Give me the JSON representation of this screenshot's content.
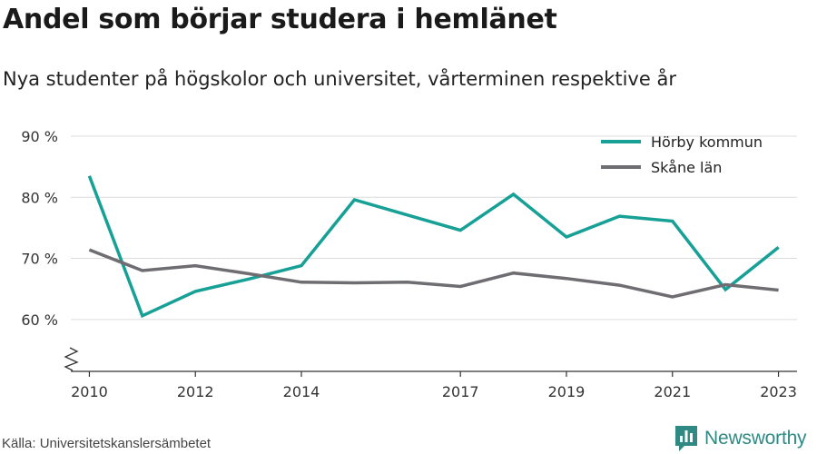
{
  "chart_data": {
    "type": "line",
    "title": "Andel som börjar studera i hemlänet",
    "subtitle": "Nya studenter på högskolor och universitet, vårterminen respektive år",
    "x": [
      2010,
      2011,
      2012,
      2013,
      2014,
      2015,
      2016,
      2017,
      2018,
      2019,
      2020,
      2021,
      2022,
      2023
    ],
    "x_ticks": [
      "2010",
      "2012",
      "2014",
      "2017",
      "2019",
      "2021",
      "2023"
    ],
    "y_ticks": [
      "60 %",
      "70 %",
      "80 %",
      "90 %"
    ],
    "y_tick_values": [
      60,
      70,
      80,
      90
    ],
    "ylim": [
      51.5,
      90
    ],
    "y_axis_break": true,
    "grid": true,
    "legend_position": "top-right",
    "series": [
      {
        "name": "Hörby kommun",
        "color": "#16a096",
        "values": [
          83.5,
          60.6,
          64.6,
          66.6,
          68.8,
          79.6,
          77.1,
          74.6,
          80.5,
          73.5,
          76.9,
          76.1,
          64.9,
          71.8
        ]
      },
      {
        "name": "Skåne län",
        "color": "#6f6d72",
        "values": [
          71.4,
          68.0,
          68.8,
          67.5,
          66.1,
          66.0,
          66.1,
          65.4,
          67.6,
          66.7,
          65.6,
          63.7,
          65.7,
          64.8
        ]
      }
    ]
  },
  "footer": {
    "source": "Källa: Universitetskanslersämbetet",
    "brand": "Newsworthy",
    "brand_icon": "newsworthy-logo-icon"
  }
}
